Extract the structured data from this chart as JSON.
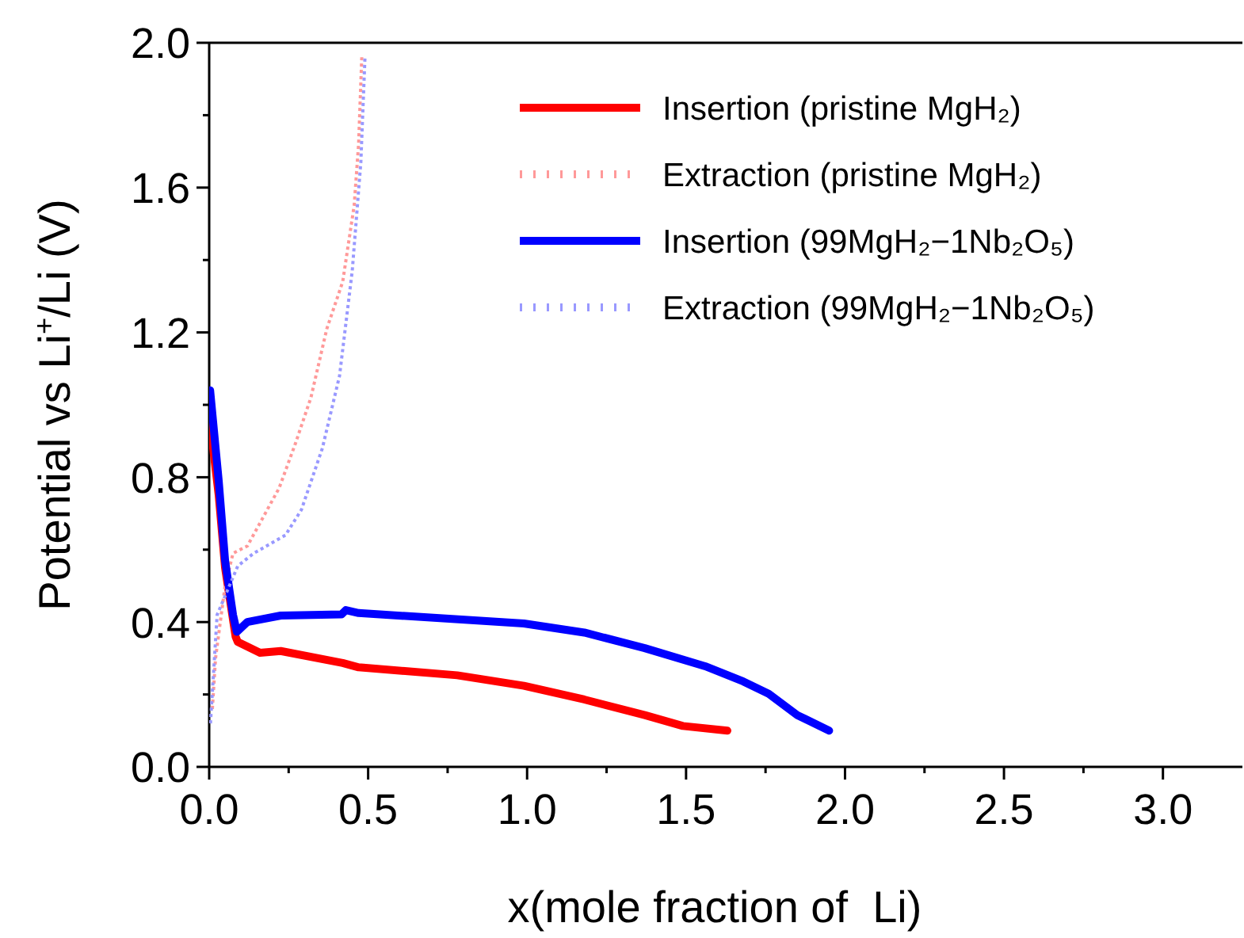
{
  "chart_data": {
    "type": "line",
    "xlabel": "x(mole fraction of  Li)",
    "ylabel": "Potential vs Li$^{+}$/Li (V)",
    "xlim": [
      0,
      3.25
    ],
    "ylim": [
      0,
      2.0
    ],
    "xticks": [
      {
        "value": 0,
        "label": "0.0"
      },
      {
        "value": 0.25,
        "label": null
      },
      0.5,
      {
        "value": 0.75,
        "label": null
      },
      {
        "value": 1,
        "label": "1.0"
      },
      {
        "value": 1.25,
        "label": null
      },
      1.5,
      {
        "value": 1.75,
        "label": null
      },
      {
        "value": 2,
        "label": "2.0"
      },
      {
        "value": 2.25,
        "label": null
      },
      2.5,
      {
        "value": 2.75,
        "label": null
      },
      {
        "value": 3,
        "label": "3.0"
      }
    ],
    "yticks": [
      {
        "value": 0,
        "label": "0.0"
      },
      {
        "value": 0.2,
        "label": null
      },
      0.4,
      {
        "value": 0.6,
        "label": null
      },
      0.8,
      {
        "value": 1.0,
        "label": null
      },
      1.2,
      {
        "value": 1.4,
        "label": null
      },
      1.6,
      {
        "value": 1.8,
        "label": null
      },
      {
        "value": 2.0,
        "label": "2.0"
      }
    ],
    "grid": false,
    "legend": "top right",
    "series": [
      {
        "name": "Insertion (pristine MgH₂)",
        "color": "#ff0000",
        "line_style": "solid",
        "x": [
          0.003,
          0.03,
          0.05,
          0.083,
          0.09,
          0.16,
          0.225,
          0.42,
          0.47,
          0.78,
          0.99,
          1.18,
          1.37,
          1.49,
          1.63
        ],
        "values": [
          0.95,
          0.75,
          0.55,
          0.36,
          0.345,
          0.315,
          0.32,
          0.287,
          0.275,
          0.253,
          0.224,
          0.186,
          0.143,
          0.113,
          0.1
        ]
      },
      {
        "name": "Extraction (pristine MgH₂)",
        "color": "#ff9999",
        "line_style": "dotted",
        "x": [
          0.01,
          0.02,
          0.05,
          0.075,
          0.12,
          0.22,
          0.27,
          0.32,
          0.37,
          0.42,
          0.456,
          0.47,
          0.48
        ],
        "values": [
          0.16,
          0.3,
          0.5,
          0.59,
          0.61,
          0.77,
          0.89,
          1.02,
          1.21,
          1.34,
          1.55,
          1.72,
          1.96
        ]
      },
      {
        "name": "Insertion (99MgH₂−1Nb₂O₅)",
        "color": "#0000ff",
        "line_style": "solid",
        "x": [
          0.003,
          0.03,
          0.05,
          0.075,
          0.087,
          0.12,
          0.225,
          0.416,
          0.43,
          0.47,
          0.99,
          1.18,
          1.37,
          1.56,
          1.68,
          1.76,
          1.85,
          1.95
        ],
        "values": [
          1.04,
          0.79,
          0.57,
          0.42,
          0.373,
          0.4,
          0.418,
          0.421,
          0.433,
          0.425,
          0.396,
          0.371,
          0.328,
          0.278,
          0.236,
          0.202,
          0.143,
          0.1
        ]
      },
      {
        "name": "Extraction (99MgH₂−1Nb₂O₅)",
        "color": "#9999ff",
        "line_style": "dotted",
        "x": [
          0.004,
          0.025,
          0.09,
          0.14,
          0.24,
          0.29,
          0.356,
          0.41,
          0.45,
          0.477,
          0.49
        ],
        "values": [
          0.12,
          0.42,
          0.555,
          0.59,
          0.64,
          0.71,
          0.88,
          1.08,
          1.37,
          1.67,
          1.96
        ]
      }
    ]
  }
}
